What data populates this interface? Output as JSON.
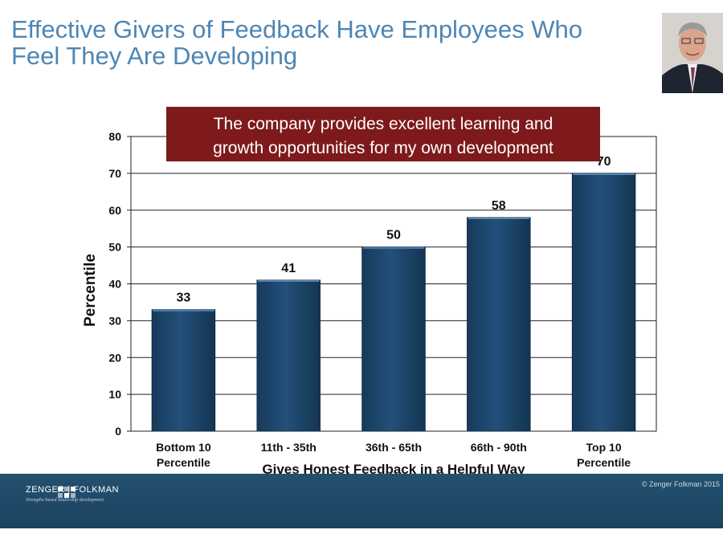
{
  "slide": {
    "title_line1": "Effective Givers of Feedback Have Employees Who",
    "title_line2": "Feel They Are Developing",
    "copyright": "© Zenger Folkman 2015",
    "logo_text": "ZENGER | FOLKMAN",
    "logo_tagline": "Strengths-based leadership development"
  },
  "colors": {
    "title": "#4e86b4",
    "bar": "#1c4468",
    "callout": "#7e1a1c",
    "footer": "#1f4868"
  },
  "chart_data": {
    "type": "bar",
    "title": "The company provides excellent learning and growth opportunities for my own development",
    "title_lines": [
      "The company provides excellent learning and",
      "growth opportunities for my own development"
    ],
    "xlabel": "Gives Honest Feedback in a Helpful Way",
    "ylabel": "Percentile",
    "categories": [
      [
        "Bottom 10",
        "Percentile"
      ],
      [
        "11th - 35th"
      ],
      [
        "36th - 65th"
      ],
      [
        "66th - 90th"
      ],
      [
        "Top 10",
        "Percentile"
      ]
    ],
    "values": [
      33,
      41,
      50,
      58,
      70
    ],
    "data_labels": [
      "33",
      "41",
      "50",
      "58",
      "70"
    ],
    "ylim": [
      0,
      80
    ],
    "yticks": [
      0,
      10,
      20,
      30,
      40,
      50,
      60,
      70,
      80
    ],
    "grid": true,
    "legend": "none"
  }
}
